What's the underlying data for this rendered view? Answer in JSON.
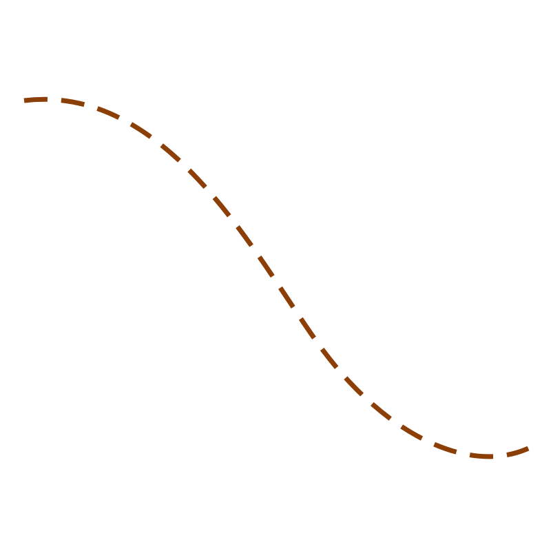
{
  "curve": {
    "color": "#8b3e06",
    "style": "dashed",
    "shape": "s-curve"
  }
}
